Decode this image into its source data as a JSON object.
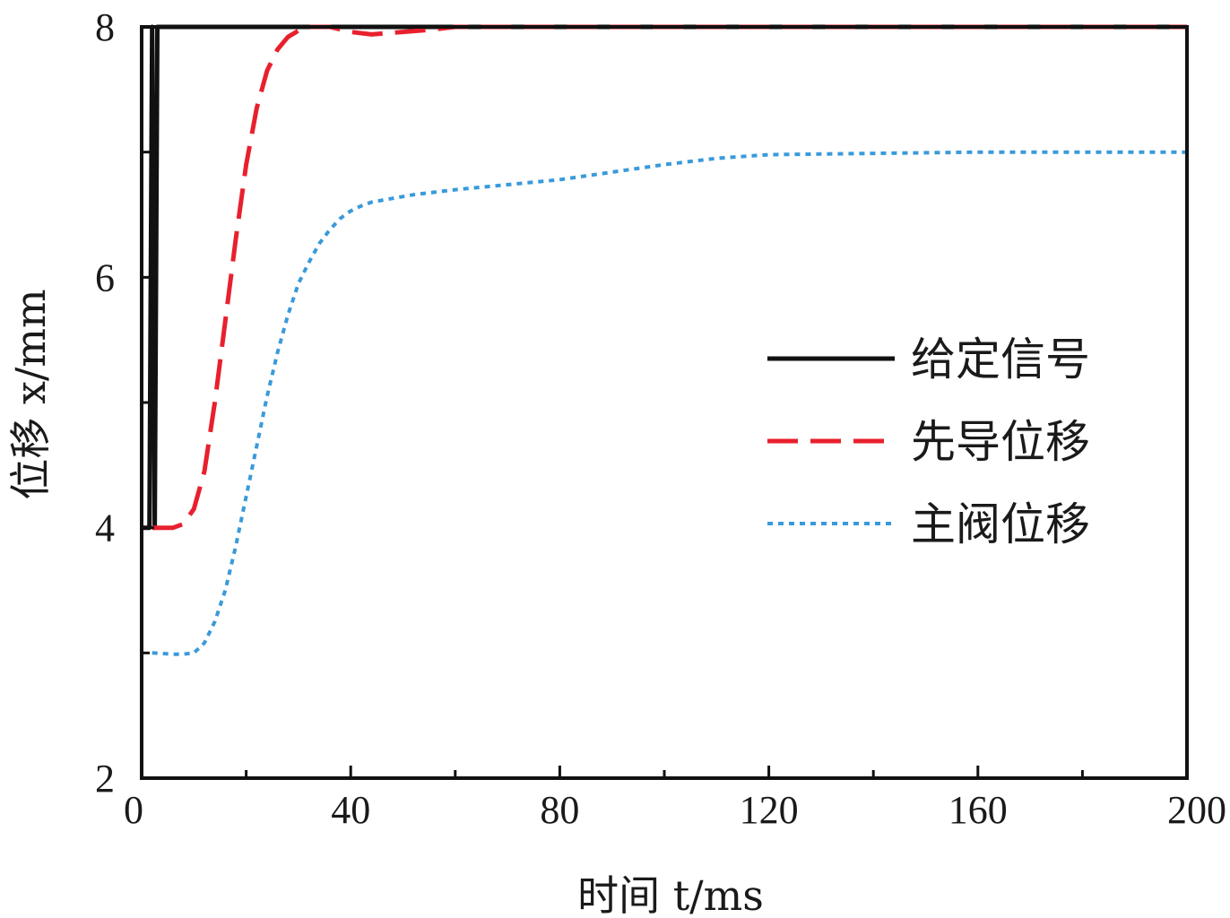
{
  "chart_data": {
    "type": "line",
    "xlabel": "时间 t/ms",
    "ylabel": "位移 x/mm",
    "xlim": [
      0,
      200
    ],
    "ylim": [
      2,
      8
    ],
    "xticks": [
      0,
      40,
      80,
      120,
      160,
      200
    ],
    "xtick_labels": [
      "0",
      "40",
      "80",
      "120",
      "160",
      "200"
    ],
    "xminor_step": 20,
    "yticks": [
      2,
      4,
      6,
      8
    ],
    "ytick_labels": [
      "2",
      "4",
      "6",
      "8"
    ],
    "yminor_step": 1,
    "grid": false,
    "legend_position": "right",
    "series": [
      {
        "name": "给定信号",
        "color": "#111111",
        "style": "solid",
        "x": [
          0,
          1.5,
          2,
          2.5,
          3,
          200
        ],
        "y": [
          4,
          4,
          8,
          4,
          8,
          8
        ]
      },
      {
        "name": "先导位移",
        "color": "#e8202e",
        "style": "dashed",
        "x": [
          2,
          6,
          8,
          10,
          12,
          14,
          16,
          18,
          20,
          22,
          24,
          26,
          28,
          30,
          32,
          36,
          40,
          44,
          50,
          56,
          60,
          80,
          120,
          160,
          200
        ],
        "y": [
          4.0,
          4.0,
          4.03,
          4.15,
          4.45,
          5.0,
          5.65,
          6.3,
          6.9,
          7.35,
          7.65,
          7.82,
          7.92,
          7.97,
          8.0,
          8.0,
          7.96,
          7.94,
          7.96,
          7.98,
          8.0,
          8.0,
          8.0,
          8.0,
          8.0
        ]
      },
      {
        "name": "主阀位移",
        "color": "#3a9ad9",
        "style": "dotted",
        "x": [
          2,
          6,
          8,
          10,
          12,
          14,
          16,
          18,
          20,
          22,
          24,
          26,
          28,
          30,
          32,
          34,
          36,
          38,
          40,
          42,
          44,
          48,
          52,
          56,
          60,
          70,
          80,
          90,
          100,
          110,
          120,
          140,
          160,
          180,
          200
        ],
        "y": [
          3.0,
          2.99,
          2.99,
          3.0,
          3.08,
          3.25,
          3.5,
          3.85,
          4.25,
          4.65,
          5.05,
          5.4,
          5.7,
          5.95,
          6.12,
          6.27,
          6.38,
          6.47,
          6.53,
          6.57,
          6.6,
          6.63,
          6.66,
          6.68,
          6.7,
          6.74,
          6.78,
          6.84,
          6.9,
          6.95,
          6.98,
          6.99,
          7.0,
          7.0,
          7.0
        ]
      }
    ]
  }
}
